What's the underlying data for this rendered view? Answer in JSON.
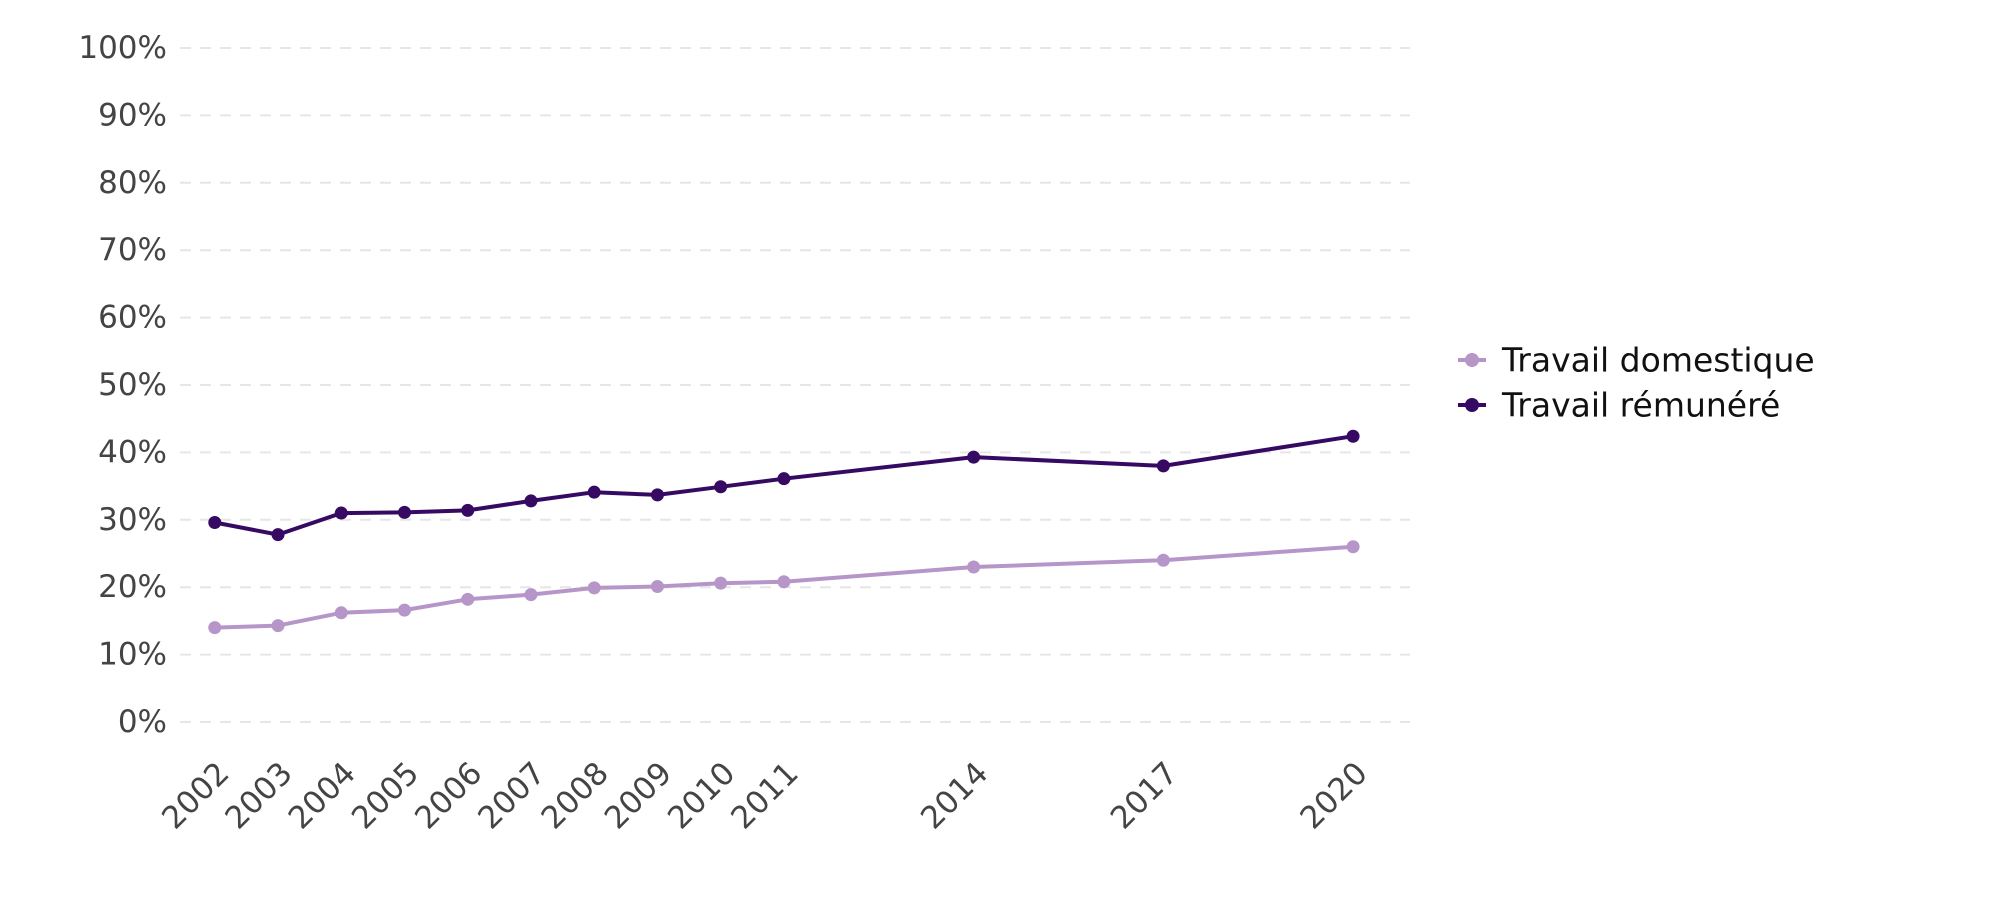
{
  "chart_data": {
    "type": "line",
    "title": "",
    "xlabel": "",
    "ylabel": "",
    "ylim": [
      0,
      100
    ],
    "yticks": [
      "0%",
      "10%",
      "20%",
      "30%",
      "40%",
      "50%",
      "60%",
      "70%",
      "80%",
      "90%",
      "100%"
    ],
    "x": [
      2002,
      2003,
      2004,
      2005,
      2006,
      2007,
      2008,
      2009,
      2010,
      2011,
      2014,
      2017,
      2020
    ],
    "grid": "horizontal dashed",
    "legend_position": "right",
    "series": [
      {
        "name": "Travail domestique",
        "color": "#b696c8",
        "values": [
          14.0,
          14.3,
          16.2,
          16.6,
          18.2,
          18.9,
          19.9,
          20.1,
          20.6,
          20.8,
          23.0,
          24.0,
          26.0
        ]
      },
      {
        "name": "Travail rémunéré",
        "color": "#360a62",
        "values": [
          29.6,
          27.8,
          31.0,
          31.1,
          31.4,
          32.8,
          34.1,
          33.7,
          34.9,
          36.1,
          39.3,
          38.0,
          42.4
        ]
      }
    ]
  }
}
